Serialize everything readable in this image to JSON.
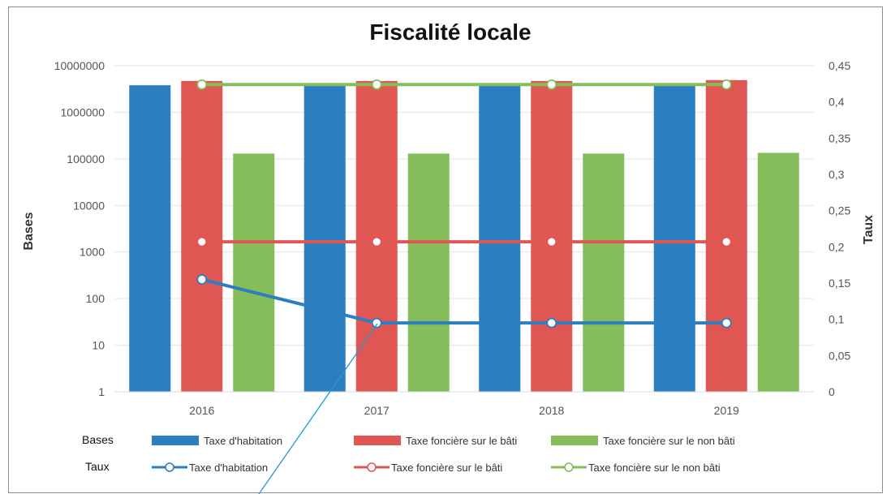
{
  "chart_data": {
    "type": "bar",
    "title": "Fiscalité locale",
    "categories": [
      "2016",
      "2017",
      "2018",
      "2019"
    ],
    "ylabel_left": "Bases",
    "ylabel_right": "Taux",
    "y_left_scale": "log",
    "y_left_ticks": [
      "1",
      "10",
      "100",
      "1000",
      "10000",
      "100000",
      "1000000",
      "10000000"
    ],
    "y_left_range": [
      1,
      10000000
    ],
    "y_right_ticks": [
      "0",
      "0,05",
      "0,1",
      "0,15",
      "0,2",
      "0,25",
      "0,3",
      "0,35",
      "0,4",
      "0,45"
    ],
    "y_right_range": [
      0,
      0.45
    ],
    "grid": "horizontal",
    "legend_position": "bottom",
    "legend_bases_label": "Bases",
    "legend_taux_label": "Taux",
    "bar_series": [
      {
        "name": "Taxe d'habitation",
        "color": "#2b7fc1",
        "values": [
          3800000,
          3800000,
          3800000,
          3800000
        ]
      },
      {
        "name": "Taxe foncière sur le bâti",
        "color": "#df5653",
        "values": [
          4700000,
          4700000,
          4700000,
          4900000
        ]
      },
      {
        "name": "Taxe foncière sur le non bâti",
        "color": "#84bd5a",
        "values": [
          130000,
          130000,
          130000,
          135000
        ]
      }
    ],
    "line_series": [
      {
        "name": "Taxe d'habitation",
        "color": "#2b7fc1",
        "values": [
          0.155,
          0.095,
          0.095,
          0.095
        ]
      },
      {
        "name": "Taxe foncière sur le bâti",
        "color": "#df5653",
        "values": [
          0.207,
          0.207,
          0.207,
          0.207
        ]
      },
      {
        "name": "Taxe foncière sur le non bâti",
        "color": "#84bd5a",
        "values": [
          0.424,
          0.424,
          0.424,
          0.424
        ]
      }
    ]
  }
}
